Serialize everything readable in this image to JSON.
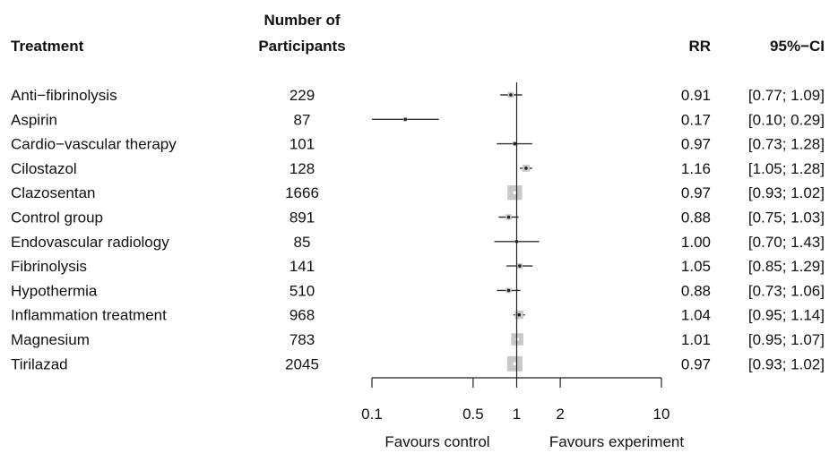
{
  "headers": {
    "treatment": "Treatment",
    "participants_line1": "Number of",
    "participants_line2": "Participants",
    "rr": "RR",
    "ci": "95%−CI"
  },
  "footer": {
    "favours_control": "Favours control",
    "favours_experiment": "Favours experiment"
  },
  "chart_data": {
    "type": "forest",
    "x_scale": "log",
    "reference_line": 1,
    "xlim": [
      0.1,
      10
    ],
    "x_ticks": [
      0.1,
      0.5,
      1,
      2,
      10
    ],
    "x_tick_labels": [
      "0.1",
      "0.5",
      "1",
      "2",
      "10"
    ],
    "columns": [
      "Treatment",
      "Number of Participants",
      "RR",
      "95%-CI"
    ],
    "rows": [
      {
        "treatment": "Anti−fibrinolysis",
        "n": "229",
        "rr": 0.91,
        "lo": 0.77,
        "hi": 1.09,
        "rr_text": "0.91",
        "ci_text": "[0.77; 1.09]",
        "weight": 0.25
      },
      {
        "treatment": "Aspirin",
        "n": "87",
        "rr": 0.17,
        "lo": 0.1,
        "hi": 0.29,
        "rr_text": "0.17",
        "ci_text": "[0.10; 0.29]",
        "weight": 0.12
      },
      {
        "treatment": "Cardio−vascular therapy",
        "n": "101",
        "rr": 0.97,
        "lo": 0.73,
        "hi": 1.28,
        "rr_text": "0.97",
        "ci_text": "[0.73; 1.28]",
        "weight": 0.15
      },
      {
        "treatment": "Cilostazol",
        "n": "128",
        "rr": 1.16,
        "lo": 1.05,
        "hi": 1.28,
        "rr_text": "1.16",
        "ci_text": "[1.05; 1.28]",
        "weight": 0.35
      },
      {
        "treatment": "Clazosentan",
        "n": "1666",
        "rr": 0.97,
        "lo": 0.93,
        "hi": 1.02,
        "rr_text": "0.97",
        "ci_text": "[0.93; 1.02]",
        "weight": 0.95
      },
      {
        "treatment": "Control group",
        "n": "891",
        "rr": 0.88,
        "lo": 0.75,
        "hi": 1.03,
        "rr_text": "0.88",
        "ci_text": "[0.75; 1.03]",
        "weight": 0.25
      },
      {
        "treatment": "Endovascular radiology",
        "n": "85",
        "rr": 1.0,
        "lo": 0.7,
        "hi": 1.43,
        "rr_text": "1.00",
        "ci_text": "[0.70; 1.43]",
        "weight": 0.05
      },
      {
        "treatment": "Fibrinolysis",
        "n": "141",
        "rr": 1.05,
        "lo": 0.85,
        "hi": 1.29,
        "rr_text": "1.05",
        "ci_text": "[0.85; 1.29]",
        "weight": 0.22
      },
      {
        "treatment": "Hypothermia",
        "n": "510",
        "rr": 0.88,
        "lo": 0.73,
        "hi": 1.06,
        "rr_text": "0.88",
        "ci_text": "[0.73; 1.06]",
        "weight": 0.22
      },
      {
        "treatment": "Inflammation treatment",
        "n": "968",
        "rr": 1.04,
        "lo": 0.95,
        "hi": 1.14,
        "rr_text": "1.04",
        "ci_text": "[0.95; 1.14]",
        "weight": 0.45
      },
      {
        "treatment": "Magnesium",
        "n": "783",
        "rr": 1.01,
        "lo": 0.95,
        "hi": 1.07,
        "rr_text": "1.01",
        "ci_text": "[0.95; 1.07]",
        "weight": 0.75
      },
      {
        "treatment": "Tirilazad",
        "n": "2045",
        "rr": 0.97,
        "lo": 0.93,
        "hi": 1.02,
        "rr_text": "0.97",
        "ci_text": "[0.93; 1.02]",
        "weight": 1.0
      }
    ],
    "colors": {
      "text": "#111111",
      "axis": "#222222",
      "ci_line": "#333333",
      "box": "#c8c8c8",
      "point": "#222222"
    }
  }
}
